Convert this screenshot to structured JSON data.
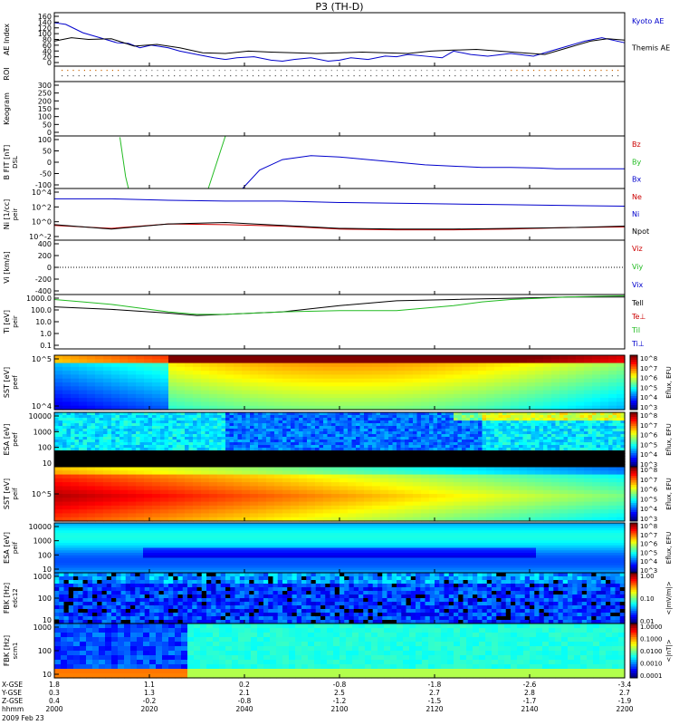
{
  "title": "P3 (TH-D)",
  "colors": {
    "black": "#000000",
    "red": "#cc0000",
    "green": "#22bb22",
    "blue": "#0000cc",
    "ev_green": "#00cc00"
  },
  "xaxis": {
    "rows": [
      {
        "label": "X-GSE",
        "values": [
          "1.8",
          "1.1",
          "0.2",
          "-0.8",
          "-1.8",
          "-2.6",
          "-3.4"
        ]
      },
      {
        "label": "Y-GSE",
        "values": [
          "0.3",
          "1.3",
          "2.1",
          "2.5",
          "2.7",
          "2.8",
          "2.7"
        ]
      },
      {
        "label": "Z-GSE",
        "values": [
          "0.4",
          "-0.2",
          "-0.8",
          "-1.2",
          "-1.5",
          "-1.7",
          "-1.9"
        ]
      },
      {
        "label": "hhmm",
        "values": [
          "2000",
          "2020",
          "2040",
          "2100",
          "2120",
          "2140",
          "2200"
        ]
      }
    ],
    "date": "2009 Feb 23"
  },
  "chart_data": [
    {
      "type": "line",
      "ylabel": "AE Index",
      "yticks": [
        "0",
        "20",
        "40",
        "60",
        "80",
        "100",
        "120",
        "140",
        "160"
      ],
      "ylim": [
        0,
        160
      ],
      "series": [
        {
          "name": "Kyoto AE",
          "color": "#0000cc",
          "x": [
            0,
            0.02,
            0.05,
            0.08,
            0.11,
            0.13,
            0.15,
            0.17,
            0.2,
            0.22,
            0.25,
            0.28,
            0.3,
            0.32,
            0.35,
            0.38,
            0.4,
            0.42,
            0.45,
            0.48,
            0.5,
            0.52,
            0.55,
            0.58,
            0.6,
            0.62,
            0.65,
            0.68,
            0.7,
            0.73,
            0.76,
            0.8,
            0.84,
            0.87,
            0.9,
            0.93,
            0.96,
            1
          ],
          "y": [
            130,
            125,
            100,
            85,
            70,
            68,
            55,
            63,
            55,
            45,
            35,
            25,
            20,
            25,
            28,
            18,
            15,
            20,
            25,
            15,
            18,
            25,
            20,
            30,
            28,
            35,
            30,
            25,
            45,
            35,
            30,
            38,
            30,
            45,
            60,
            75,
            85,
            70
          ]
        },
        {
          "name": "Themis AE",
          "color": "#000000",
          "x": [
            0,
            0.03,
            0.06,
            0.1,
            0.14,
            0.18,
            0.22,
            0.26,
            0.3,
            0.34,
            0.38,
            0.42,
            0.46,
            0.5,
            0.54,
            0.58,
            0.62,
            0.66,
            0.7,
            0.74,
            0.78,
            0.82,
            0.86,
            0.9,
            0.94,
            0.97,
            1
          ],
          "y": [
            75,
            85,
            80,
            82,
            60,
            65,
            55,
            40,
            38,
            45,
            42,
            40,
            38,
            40,
            42,
            40,
            38,
            45,
            48,
            50,
            45,
            40,
            35,
            55,
            75,
            82,
            78
          ]
        }
      ]
    },
    {
      "type": "table",
      "ylabel": "ROI",
      "note": "region-of-interest markers"
    },
    {
      "type": "line",
      "ylabel": "Keogram",
      "yticks": [
        "0",
        "50",
        "100",
        "150",
        "200",
        "250",
        "300"
      ],
      "ylim": [
        0,
        300
      ],
      "series": []
    },
    {
      "type": "line",
      "ylabel": "B FIT [nT]",
      "ylabel2": "DSL",
      "yticks": [
        "-100",
        "-50",
        "0",
        "50",
        "100"
      ],
      "ylim": [
        -100,
        100
      ],
      "series": [
        {
          "name": "Bz",
          "color": "#cc0000",
          "x": [],
          "y": []
        },
        {
          "name": "By",
          "color": "#22bb22",
          "x": [
            0.115,
            0.125,
            0.13
          ],
          "y": [
            95,
            -55,
            -100
          ]
        },
        {
          "name": "Bx",
          "color": "#0000cc",
          "x": [
            0.33,
            0.36,
            0.4,
            0.45,
            0.5,
            0.55,
            0.6,
            0.65,
            0.7,
            0.75,
            0.8,
            0.85,
            0.88,
            0.9,
            0.95,
            1
          ],
          "y": [
            -100,
            -30,
            10,
            25,
            20,
            10,
            0,
            -10,
            -15,
            -20,
            -20,
            -22,
            -25,
            -25,
            -25,
            -25
          ]
        }
      ],
      "extra": [
        {
          "color": "#22bb22",
          "x": [
            0.27,
            0.3
          ],
          "y": [
            -100,
            100
          ]
        }
      ]
    },
    {
      "type": "line",
      "ylabel": "Ni [1/cc]",
      "ylabel2": "peir",
      "yticks": [
        "10^-2",
        "10^0",
        "10^2",
        "10^4"
      ],
      "ylim": [
        -2,
        5
      ],
      "series": [
        {
          "name": "Ne",
          "color": "#cc0000",
          "x": [
            0,
            0.1,
            0.2,
            0.3,
            0.4,
            0.5,
            0.6,
            0.7,
            0.8,
            0.9,
            1
          ],
          "y": [
            0,
            -0.4,
            0.2,
            0.1,
            -0.1,
            -0.5,
            -0.6,
            -0.6,
            -0.5,
            -0.3,
            -0.2
          ]
        },
        {
          "name": "Ni",
          "color": "#0000cc",
          "x": [
            0,
            0.1,
            0.2,
            0.3,
            0.4,
            0.5,
            0.6,
            0.7,
            0.8,
            0.9,
            1
          ],
          "y": [
            3.6,
            3.6,
            3.4,
            3.3,
            3.3,
            3.1,
            3,
            2.9,
            2.8,
            2.7,
            2.6
          ]
        },
        {
          "name": "Npot",
          "color": "#000000",
          "x": [
            0,
            0.1,
            0.2,
            0.3,
            0.4,
            0.5,
            0.6,
            0.7,
            0.8,
            0.9,
            1
          ],
          "y": [
            0.1,
            -0.5,
            0.2,
            0.4,
            0,
            -0.4,
            -0.5,
            -0.5,
            -0.4,
            -0.3,
            -0.1
          ]
        }
      ]
    },
    {
      "type": "line",
      "ylabel": "Vi [km/s]",
      "yticks": [
        "-400",
        "-200",
        "0",
        "200",
        "400"
      ],
      "ylim": [
        -500,
        500
      ],
      "series": [
        {
          "name": "Viz",
          "color": "#cc0000",
          "x": [],
          "y": []
        },
        {
          "name": "Viy",
          "color": "#22bb22",
          "x": [],
          "y": []
        },
        {
          "name": "Vix",
          "color": "#0000cc",
          "x": [],
          "y": []
        }
      ]
    },
    {
      "type": "line",
      "ylabel": "Ti [eV]",
      "ylabel2": "peir",
      "yticks": [
        "0.1",
        "1.0",
        "10.0",
        "100.0",
        "1000.0"
      ],
      "ylim": [
        -1,
        3.4
      ],
      "series": [
        {
          "name": "Tell",
          "color": "#000000",
          "x": [
            0,
            0.1,
            0.2,
            0.25,
            0.3,
            0.4,
            0.5,
            0.6,
            0.7,
            0.8,
            0.9,
            1
          ],
          "y": [
            2.4,
            2.2,
            1.9,
            1.7,
            1.8,
            2.0,
            2.5,
            2.9,
            3.0,
            3.1,
            3.2,
            3.2
          ]
        },
        {
          "name": "Te⊥",
          "color": "#cc0000",
          "x": [],
          "y": []
        },
        {
          "name": "Til",
          "color": "#22bb22",
          "x": [
            0,
            0.05,
            0.1,
            0.15,
            0.2,
            0.25,
            0.3,
            0.4,
            0.5,
            0.6,
            0.7,
            0.75,
            0.8,
            0.85,
            0.9,
            1
          ],
          "y": [
            3.0,
            2.8,
            2.6,
            2.3,
            2.0,
            1.8,
            1.8,
            2.0,
            2.1,
            2.1,
            2.5,
            2.8,
            3.0,
            3.1,
            3.2,
            3.3
          ]
        },
        {
          "name": "Ti⊥",
          "color": "#0000cc",
          "x": [],
          "y": []
        }
      ]
    },
    {
      "type": "heatmap",
      "ylabel": "SST [eV]",
      "ylabel2": "peef",
      "yticks": [
        "10^4",
        "10^5"
      ],
      "cbar_ticks": [
        "10^3",
        "10^4",
        "10^5",
        "10^6",
        "10^7",
        "10^8"
      ],
      "cbar_label": "Eflux, EFU"
    },
    {
      "type": "heatmap",
      "ylabel": "ESA [eV]",
      "ylabel2": "peef",
      "yticks": [
        "10",
        "100",
        "1000",
        "10000"
      ],
      "cbar_ticks": [
        "10^3",
        "10^4",
        "10^5",
        "10^6",
        "10^7",
        "10^8"
      ],
      "cbar_label": "Eflux, EFU"
    },
    {
      "type": "heatmap",
      "ylabel": "SST [eV]",
      "ylabel2": "peif",
      "yticks": [
        "10^5"
      ],
      "cbar_ticks": [
        "10^3",
        "10^4",
        "10^5",
        "10^6",
        "10^7",
        "10^8"
      ],
      "cbar_label": "Eflux, EFU"
    },
    {
      "type": "heatmap",
      "ylabel": "ESA [eV]",
      "ylabel2": "peif",
      "yticks": [
        "10",
        "100",
        "1000",
        "10000"
      ],
      "cbar_ticks": [
        "10^3",
        "10^4",
        "10^5",
        "10^6",
        "10^7",
        "10^8"
      ],
      "cbar_label": "Eflux, EFU"
    },
    {
      "type": "heatmap",
      "ylabel": "FBK [Hz]",
      "ylabel2": "edc12",
      "yticks": [
        "10",
        "100",
        "1000"
      ],
      "cbar_ticks": [
        "0.01",
        "0.10",
        "1.00"
      ],
      "cbar_label": "<|mV/m|>"
    },
    {
      "type": "heatmap",
      "ylabel": "FBK [Hz]",
      "ylabel2": "scm1",
      "yticks": [
        "10",
        "100",
        "1000"
      ],
      "cbar_ticks": [
        "0.0001",
        "0.0010",
        "0.0100",
        "0.1000",
        "1.0000"
      ],
      "cbar_label": "<|nT|>"
    }
  ]
}
